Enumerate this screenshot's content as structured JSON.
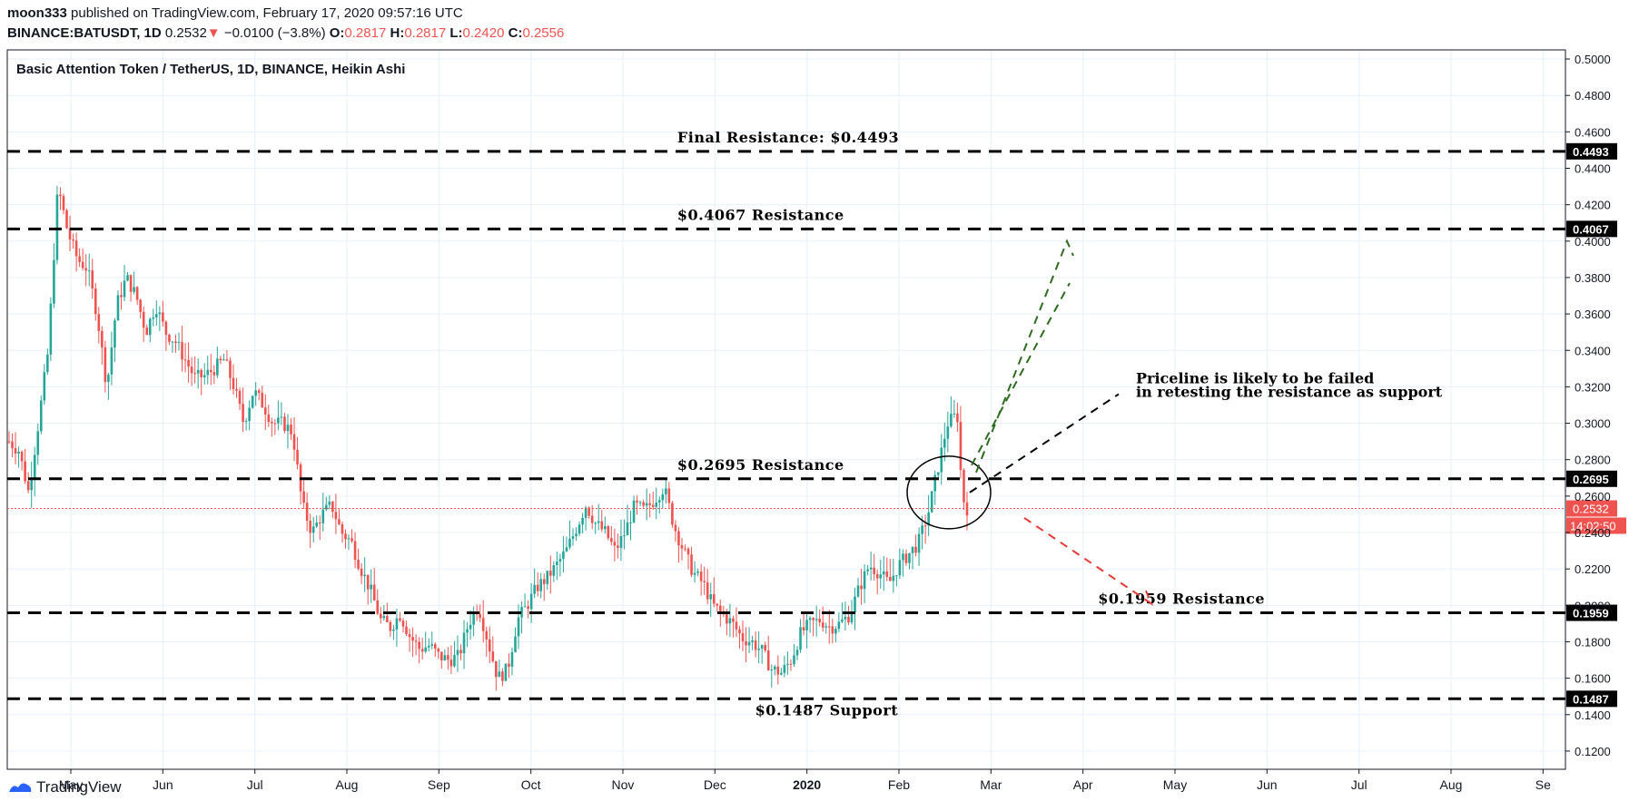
{
  "header": {
    "author": "moon333",
    "published": "published on TradingView.com, February 17, 2020 09:57:16 UTC",
    "symbol": "BINANCE:BATUSDT, 1D",
    "last": "0.2532",
    "change": "−0.0100 (−3.8%)",
    "o_label": "O:",
    "o_val": "0.2817",
    "h_label": "H:",
    "h_val": "0.2817",
    "l_label": "L:",
    "l_val": "0.2420",
    "c_label": "C:",
    "c_val": "0.2556"
  },
  "footer": {
    "brand": "TradingView"
  },
  "colors": {
    "up": "#26a69a",
    "down": "#ef5350",
    "grid": "#e8f0f8",
    "axis": "#131722"
  },
  "chart_data": {
    "type": "candlestick",
    "title": "Basic Attention Token / TetherUS, 1D, BINANCE, Heikin Ashi",
    "y_ticks": [
      "0.5000",
      "0.4800",
      "0.4600",
      "0.4400",
      "0.4200",
      "0.4000",
      "0.3800",
      "0.3600",
      "0.3400",
      "0.3200",
      "0.3000",
      "0.2800",
      "0.2600",
      "0.2400",
      "0.2200",
      "0.2000",
      "0.1800",
      "0.1600",
      "0.1400",
      "0.1200"
    ],
    "x_ticks": [
      "May",
      "Jun",
      "Jul",
      "Aug",
      "Sep",
      "Oct",
      "Nov",
      "Dec",
      "2020",
      "Feb",
      "Mar",
      "Apr",
      "May",
      "Jun",
      "Jul",
      "Aug",
      "Se"
    ],
    "ylim": [
      0.11,
      0.505
    ],
    "levels": [
      {
        "price": 0.4493,
        "label": "0.4493",
        "annotation": "Final Resistance: $0.4493",
        "ann_x": 0.43
      },
      {
        "price": 0.4067,
        "label": "0.4067",
        "annotation": "$0.4067 Resistance",
        "ann_x": 0.43
      },
      {
        "price": 0.2695,
        "label": "0.2695",
        "annotation": "$0.2695 Resistance",
        "ann_x": 0.43
      },
      {
        "price": 0.1959,
        "label": "0.1959",
        "annotation": "$0.1959 Resistance",
        "ann_x": 0.7
      },
      {
        "price": 0.1487,
        "label": "0.1487",
        "annotation": "$0.1487 Support",
        "ann_x": 0.48
      }
    ],
    "last_price": {
      "price": 0.2532,
      "label": "0.2532",
      "countdown": "14:02:50"
    },
    "note": [
      "Priceline is likely to be failed",
      "in retesting the resistance as support"
    ],
    "series_close": [
      [
        0,
        0.29
      ],
      [
        0.01,
        0.285
      ],
      [
        0.02,
        0.262
      ],
      [
        0.03,
        0.3
      ],
      [
        0.04,
        0.34
      ],
      [
        0.05,
        0.43
      ],
      [
        0.06,
        0.405
      ],
      [
        0.07,
        0.39
      ],
      [
        0.08,
        0.385
      ],
      [
        0.09,
        0.36
      ],
      [
        0.1,
        0.32
      ],
      [
        0.11,
        0.365
      ],
      [
        0.12,
        0.38
      ],
      [
        0.13,
        0.37
      ],
      [
        0.14,
        0.35
      ],
      [
        0.15,
        0.365
      ],
      [
        0.16,
        0.35
      ],
      [
        0.17,
        0.345
      ],
      [
        0.18,
        0.335
      ],
      [
        0.19,
        0.325
      ],
      [
        0.2,
        0.326
      ],
      [
        0.21,
        0.33
      ],
      [
        0.22,
        0.335
      ],
      [
        0.23,
        0.32
      ],
      [
        0.24,
        0.3
      ],
      [
        0.25,
        0.318
      ],
      [
        0.26,
        0.31
      ],
      [
        0.27,
        0.3
      ],
      [
        0.28,
        0.3
      ],
      [
        0.29,
        0.295
      ],
      [
        0.3,
        0.255
      ],
      [
        0.31,
        0.24
      ],
      [
        0.32,
        0.25
      ],
      [
        0.33,
        0.255
      ],
      [
        0.34,
        0.24
      ],
      [
        0.35,
        0.235
      ],
      [
        0.36,
        0.22
      ],
      [
        0.37,
        0.208
      ],
      [
        0.38,
        0.192
      ],
      [
        0.39,
        0.188
      ],
      [
        0.4,
        0.195
      ],
      [
        0.41,
        0.183
      ],
      [
        0.42,
        0.176
      ],
      [
        0.43,
        0.178
      ],
      [
        0.44,
        0.172
      ],
      [
        0.45,
        0.17
      ],
      [
        0.46,
        0.172
      ],
      [
        0.47,
        0.19
      ],
      [
        0.48,
        0.2
      ],
      [
        0.49,
        0.18
      ],
      [
        0.5,
        0.16
      ],
      [
        0.51,
        0.165
      ],
      [
        0.52,
        0.192
      ],
      [
        0.53,
        0.2
      ],
      [
        0.54,
        0.21
      ],
      [
        0.55,
        0.215
      ],
      [
        0.56,
        0.222
      ],
      [
        0.57,
        0.23
      ],
      [
        0.58,
        0.242
      ],
      [
        0.59,
        0.255
      ],
      [
        0.6,
        0.245
      ],
      [
        0.61,
        0.24
      ],
      [
        0.62,
        0.23
      ],
      [
        0.63,
        0.24
      ],
      [
        0.64,
        0.255
      ],
      [
        0.65,
        0.252
      ],
      [
        0.66,
        0.258
      ],
      [
        0.67,
        0.265
      ],
      [
        0.68,
        0.244
      ],
      [
        0.69,
        0.23
      ],
      [
        0.7,
        0.218
      ],
      [
        0.71,
        0.212
      ],
      [
        0.72,
        0.2
      ],
      [
        0.73,
        0.195
      ],
      [
        0.74,
        0.19
      ],
      [
        0.75,
        0.182
      ],
      [
        0.76,
        0.18
      ],
      [
        0.77,
        0.175
      ],
      [
        0.78,
        0.165
      ],
      [
        0.79,
        0.163
      ],
      [
        0.8,
        0.17
      ],
      [
        0.81,
        0.185
      ],
      [
        0.82,
        0.19
      ],
      [
        0.83,
        0.192
      ],
      [
        0.84,
        0.188
      ],
      [
        0.85,
        0.19
      ],
      [
        0.86,
        0.195
      ],
      [
        0.87,
        0.21
      ],
      [
        0.88,
        0.222
      ],
      [
        0.89,
        0.218
      ],
      [
        0.9,
        0.212
      ],
      [
        0.91,
        0.222
      ],
      [
        0.92,
        0.228
      ],
      [
        0.93,
        0.234
      ],
      [
        0.94,
        0.25
      ],
      [
        0.95,
        0.275
      ],
      [
        0.96,
        0.3
      ],
      [
        0.97,
        0.305
      ],
      [
        0.975,
        0.26
      ],
      [
        0.98,
        0.2532
      ]
    ]
  }
}
